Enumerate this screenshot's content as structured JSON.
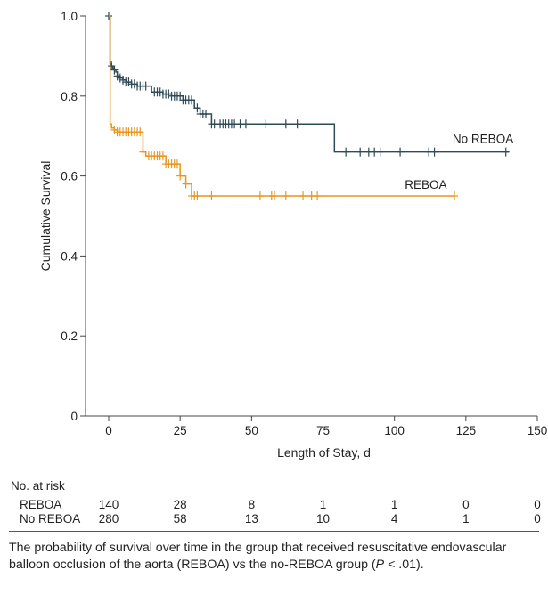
{
  "chart_data": {
    "type": "line",
    "subtype": "kaplan-meier",
    "title": "",
    "xlabel": "Length of Stay, d",
    "ylabel": "Cumulative Survival",
    "xlim": [
      0,
      150
    ],
    "ylim": [
      0,
      1.0
    ],
    "x_ticks": [
      0,
      25,
      50,
      75,
      100,
      125,
      150
    ],
    "y_ticks": [
      0,
      0.2,
      0.4,
      0.6,
      0.8,
      1.0
    ],
    "x_tick_labels": [
      "0",
      "25",
      "50",
      "75",
      "100",
      "125",
      "150"
    ],
    "y_tick_labels": [
      "0",
      "0.2",
      "0.4",
      "0.6",
      "0.8",
      "1.0"
    ],
    "grid": false,
    "series": [
      {
        "name": "No REBOA",
        "color": "#2e4a55",
        "step_x": [
          0,
          0.5,
          1,
          1.5,
          2,
          2.5,
          3,
          4,
          5,
          6,
          8,
          10,
          15,
          19,
          22,
          26,
          30,
          32,
          36,
          79,
          140
        ],
        "step_y": [
          1.0,
          0.88,
          0.875,
          0.87,
          0.865,
          0.86,
          0.85,
          0.845,
          0.84,
          0.835,
          0.83,
          0.825,
          0.81,
          0.805,
          0.8,
          0.79,
          0.77,
          0.755,
          0.73,
          0.66,
          0.66
        ],
        "censor_x": [
          0,
          1,
          2,
          3,
          4,
          5,
          6,
          7,
          8,
          9,
          10,
          11,
          12,
          13,
          16,
          17,
          18,
          19,
          20,
          21,
          22,
          23,
          24,
          25,
          26,
          27,
          28,
          29,
          31,
          32,
          33,
          34,
          36,
          37,
          39,
          40,
          41,
          42,
          43,
          44,
          46,
          48,
          55,
          62,
          66,
          83,
          88,
          91,
          93,
          95,
          102,
          112,
          114,
          139
        ]
      },
      {
        "name": "REBOA",
        "color": "#e8961e",
        "step_x": [
          0,
          0.5,
          1,
          2,
          3,
          12,
          13,
          20,
          25,
          27,
          29,
          121
        ],
        "step_y": [
          1.0,
          0.73,
          0.72,
          0.715,
          0.71,
          0.66,
          0.65,
          0.63,
          0.6,
          0.58,
          0.55,
          0.55
        ],
        "censor_x": [
          2,
          3,
          4,
          5,
          6,
          7,
          8,
          9,
          10,
          11,
          12,
          14,
          15,
          16,
          17,
          18,
          19,
          20,
          21,
          22,
          23,
          24,
          25,
          27,
          29,
          30,
          31,
          36,
          53,
          57,
          58,
          62,
          68,
          71,
          73,
          121
        ]
      }
    ],
    "annotations": [
      {
        "text": "No REBOA",
        "x": 131,
        "y": 0.683
      },
      {
        "text": "REBOA",
        "x": 111,
        "y": 0.568
      }
    ],
    "risk_table": {
      "title": "No. at risk",
      "time_points": [
        0,
        25,
        50,
        75,
        100,
        125,
        150
      ],
      "rows": [
        {
          "label": "REBOA",
          "counts": [
            "140",
            "28",
            "8",
            "1",
            "1",
            "0",
            "0"
          ]
        },
        {
          "label": "No REBOA",
          "counts": [
            "280",
            "58",
            "13",
            "10",
            "4",
            "1",
            "0"
          ]
        }
      ]
    }
  },
  "caption": {
    "text_before": "The probability of survival over time in the group that received resuscitative endovascular balloon occlusion of the aorta (REBOA) vs the no-REBOA group (",
    "italic": "P",
    "text_after": " < .01)."
  }
}
